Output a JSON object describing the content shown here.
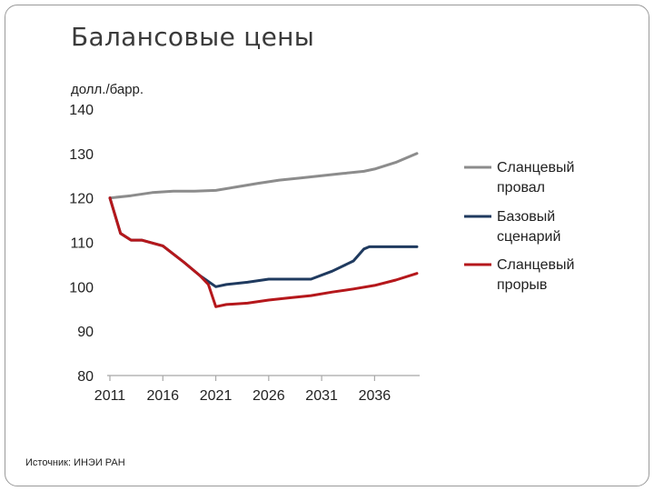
{
  "slide": {
    "title": "Балансовые цены",
    "source": "Источник: ИНЭИ РАН"
  },
  "chart_data": {
    "type": "line",
    "ylabel": "долл./барр.",
    "ylim": [
      80,
      140
    ],
    "yticks": [
      80,
      90,
      100,
      110,
      120,
      130,
      140
    ],
    "xlim": [
      2011,
      2040
    ],
    "xticks": [
      2011,
      2016,
      2021,
      2026,
      2031,
      2036
    ],
    "grid": false,
    "legend_position": "right",
    "series": [
      {
        "name": "Сланцевый провал",
        "color": "#8c8c8c",
        "x": [
          2011,
          2013,
          2015,
          2017,
          2019,
          2021,
          2023,
          2025,
          2027,
          2029,
          2031,
          2033,
          2035,
          2036,
          2038,
          2040
        ],
        "y": [
          120,
          120.5,
          121.2,
          121.5,
          121.5,
          121.7,
          122.5,
          123.3,
          124,
          124.5,
          125,
          125.5,
          126,
          126.5,
          128,
          130
        ]
      },
      {
        "name": "Базовый сценарий",
        "color": "#1f3a5f",
        "x": [
          2011,
          2012,
          2013,
          2014,
          2016,
          2018,
          2019.5,
          2021,
          2022,
          2024,
          2026,
          2028,
          2030,
          2032,
          2034,
          2035,
          2035.5,
          2037,
          2040
        ],
        "y": [
          120,
          112,
          110.5,
          110.5,
          109.2,
          105.5,
          102.5,
          100,
          100.5,
          101,
          101.7,
          101.7,
          101.7,
          103.5,
          105.8,
          108.5,
          109,
          109,
          109
        ]
      },
      {
        "name": "Сланцевый прорыв",
        "color": "#b5171b",
        "x": [
          2011,
          2012,
          2013,
          2014,
          2016,
          2018,
          2019.5,
          2020.3,
          2021,
          2022,
          2024,
          2026,
          2028,
          2030,
          2032,
          2034,
          2036,
          2038,
          2040
        ],
        "y": [
          120,
          112,
          110.5,
          110.5,
          109.2,
          105.5,
          102.5,
          100.5,
          95.5,
          96,
          96.3,
          97,
          97.5,
          98,
          98.8,
          99.5,
          100.3,
          101.5,
          103
        ]
      }
    ]
  }
}
